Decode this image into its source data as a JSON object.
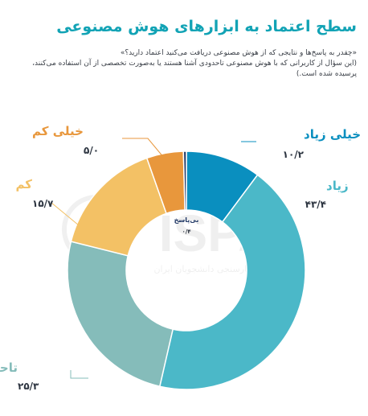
{
  "title": "سطح اعتماد به ابزارهای هوش مصنوعی",
  "question": "«چقدر به پاسخ‌ها و نتایجی که از هوش مصنوعی دریافت می‌کنید اعتماد دارید؟»",
  "note": "(این سؤال از کاربرانی که با هوش مصنوعی تاحدودی آشنا هستند یا به‌صورت تخصصی از آن استفاده می‌کنند، پرسیده شده است.)",
  "watermark": {
    "logo": "ISPA",
    "caption": "مرکز افکارسنجی دانشجویان ایران"
  },
  "colors": {
    "title": "#12a3b5",
    "very_high": "#0a8fbf",
    "high": "#4bb8c8",
    "somewhat": "#85bcba",
    "low": "#f3c165",
    "very_low": "#e8973c",
    "no_answer": "#233a67"
  },
  "chart_data": {
    "type": "pie",
    "donut": true,
    "slices": [
      {
        "label": "خیلی زیاد",
        "value_label": "۱۰/۲",
        "value": 10.2,
        "color": "#0a8fbf"
      },
      {
        "label": "زیاد",
        "value_label": "۴۳/۴",
        "value": 43.4,
        "color": "#4bb8c8"
      },
      {
        "label": "تاحدودی",
        "value_label": "۲۵/۳",
        "value": 25.3,
        "color": "#85bcba"
      },
      {
        "label": "کم",
        "value_label": "۱۵/۷",
        "value": 15.7,
        "color": "#f3c165"
      },
      {
        "label": "خیلی کم",
        "value_label": "۵/۰",
        "value": 5.0,
        "color": "#e8973c"
      },
      {
        "label": "بی‌پاسخ",
        "value_label": "۰/۴",
        "value": 0.4,
        "color": "#233a67"
      }
    ]
  }
}
